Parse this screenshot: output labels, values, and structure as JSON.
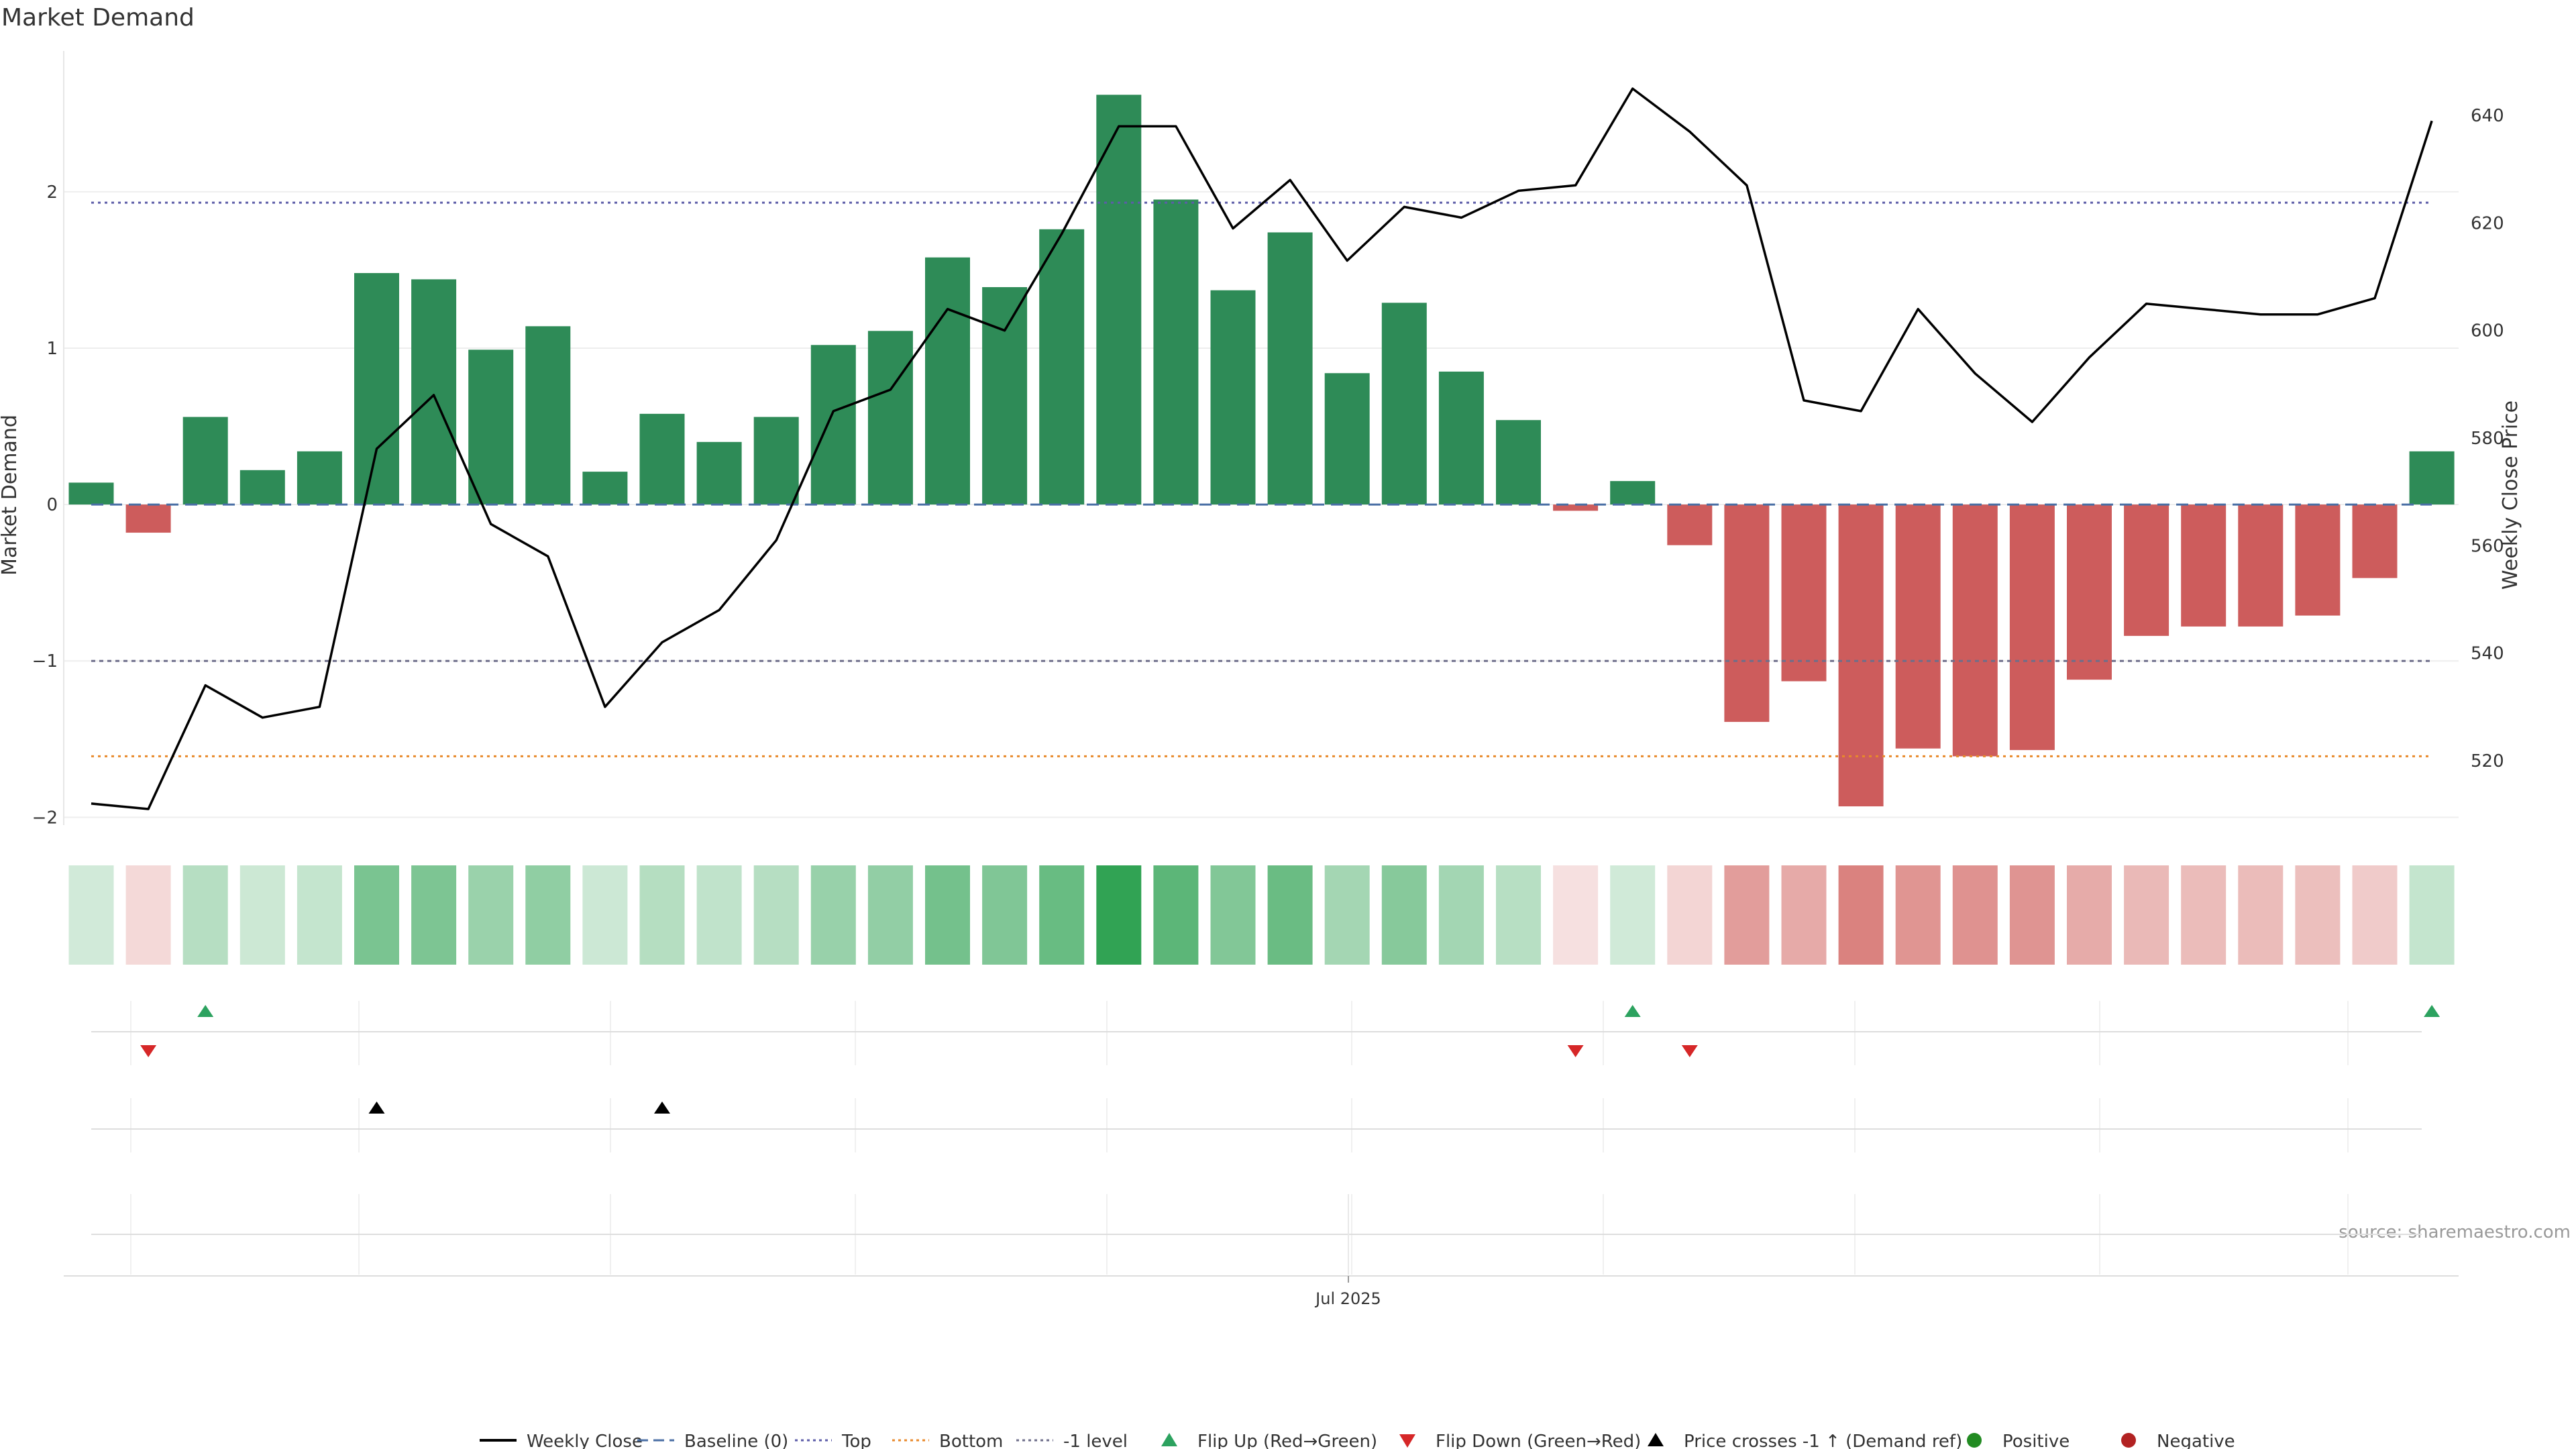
{
  "chart_data": {
    "type": "bar",
    "title": "Market Demand",
    "ylabel": "Market Demand",
    "y2label": "Weekly Close Price",
    "ylim": [
      -2.05,
      2.9
    ],
    "y2lim": [
      508,
      652
    ],
    "yticks": [
      -2,
      -1,
      0,
      1,
      2
    ],
    "y2ticks": [
      520,
      540,
      560,
      580,
      600,
      620,
      640
    ],
    "xtick_label": "Jul 2025",
    "xtick_index": 22,
    "levels": {
      "top": 1.93,
      "bottom": -1.61,
      "minus_one": -1.0,
      "baseline": 0
    },
    "demand": [
      0.14,
      -0.18,
      0.56,
      0.22,
      0.34,
      1.48,
      1.44,
      0.99,
      1.14,
      0.21,
      0.58,
      0.4,
      0.56,
      1.02,
      1.11,
      1.58,
      1.39,
      1.76,
      2.62,
      1.95,
      1.37,
      1.74,
      0.84,
      1.29,
      0.85,
      0.54,
      -0.04,
      0.15,
      -0.26,
      -1.39,
      -1.13,
      -1.93,
      -1.56,
      -1.61,
      -1.57,
      -1.12,
      -0.84,
      -0.78,
      -0.78,
      -0.71,
      -0.47,
      0.34
    ],
    "weekly_close": [
      512,
      511,
      534,
      528,
      530,
      578,
      588,
      564,
      558,
      530,
      542,
      548,
      561,
      585,
      589,
      604,
      600,
      618,
      638,
      638,
      619,
      628,
      613,
      623,
      621,
      626,
      627,
      645,
      637,
      627,
      587,
      585,
      604,
      592,
      583,
      595,
      605,
      604,
      603,
      603,
      606,
      639
    ],
    "flip_up": [
      2,
      27,
      41
    ],
    "flip_down": [
      1,
      26,
      28
    ],
    "price_cross": [
      5,
      10
    ],
    "legend": [
      {
        "label": "Weekly Close",
        "kind": "line",
        "color": "#000000"
      },
      {
        "label": "Baseline (0)",
        "kind": "dash",
        "color": "#4a6fa5"
      },
      {
        "label": "Top",
        "kind": "dot",
        "color": "#5c5ca8"
      },
      {
        "label": "Bottom",
        "kind": "dot",
        "color": "#e8892b"
      },
      {
        "label": "-1 level",
        "kind": "dot",
        "color": "#6e6e8a"
      },
      {
        "label": "Flip Up (Red→Green)",
        "kind": "tri-up",
        "color": "#2ca25f"
      },
      {
        "label": "Flip Down (Green→Red)",
        "kind": "tri-down",
        "color": "#d62728"
      },
      {
        "label": "Price crosses -1 ↑ (Demand ref)",
        "kind": "tri-up",
        "color": "#000000"
      },
      {
        "label": "Positive",
        "kind": "circle",
        "color": "#228b22"
      },
      {
        "label": "Negative",
        "kind": "circle",
        "color": "#b22222"
      }
    ],
    "source": "source: sharemaestro.com",
    "colors": {
      "positive": "#2e8b57",
      "negative": "#cd5c5c"
    }
  }
}
